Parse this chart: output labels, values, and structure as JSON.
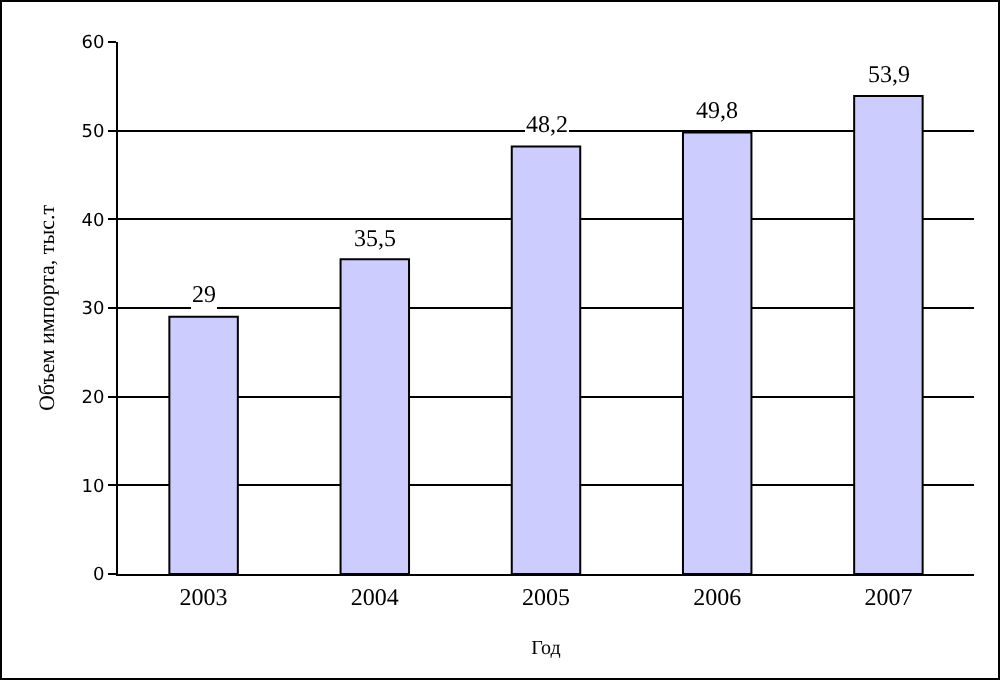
{
  "chart_data": {
    "type": "bar",
    "xlabel": "Год",
    "ylabel": "Объем импорта, тыс.т",
    "categories": [
      "2003",
      "2004",
      "2005",
      "2006",
      "2007"
    ],
    "values": [
      29,
      35.5,
      48.2,
      49.8,
      53.9
    ],
    "value_labels": [
      "29",
      "35,5",
      "48,2",
      "49,8",
      "53,9"
    ],
    "color": "#ccccff",
    "ylim": [
      0,
      60
    ],
    "yticks": [
      0,
      10,
      20,
      30,
      40,
      50,
      60
    ],
    "grid": "y"
  }
}
